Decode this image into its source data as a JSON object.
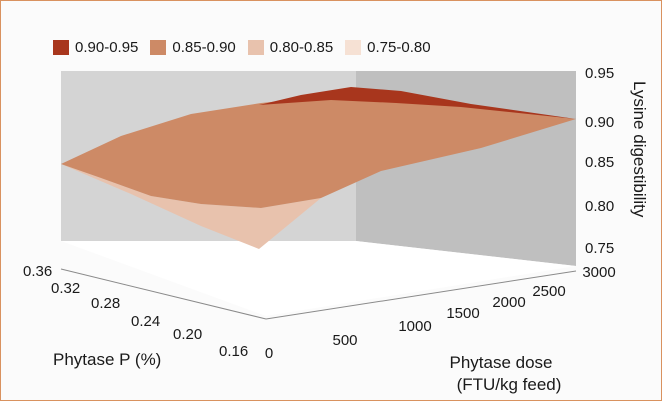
{
  "chart_data": {
    "type": "surface",
    "legend": {
      "placement": "top",
      "entries": [
        {
          "label": "0.90-0.95",
          "color": "#a8361d"
        },
        {
          "label": "0.85-0.90",
          "color": "#cd8a66"
        },
        {
          "label": "0.80-0.85",
          "color": "#e8c2ad"
        },
        {
          "label": "0.75-0.80",
          "color": "#f6e1d4"
        }
      ]
    },
    "x_axis": {
      "label_lines": [
        "Phytase dose",
        "(FTU/kg feed)"
      ],
      "ticks": [
        0,
        500,
        1000,
        1500,
        2000,
        2500,
        3000
      ],
      "range": [
        0,
        3000
      ]
    },
    "y_axis": {
      "label": "Phytase P (%)",
      "ticks": [
        "0.16",
        "0.20",
        "0.24",
        "0.28",
        "0.32",
        "0.36"
      ],
      "range": [
        0.16,
        0.36
      ]
    },
    "z_axis": {
      "label": "Lysine digestibility",
      "ticks": [
        "0.75",
        "0.80",
        "0.85",
        "0.90",
        "0.95"
      ],
      "range": [
        0.75,
        0.95
      ]
    },
    "surface_corners": [
      {
        "phytase_dose": 0,
        "phytase_p": 0.16,
        "lysine_digestibility": 0.81
      },
      {
        "phytase_dose": 3000,
        "phytase_p": 0.16,
        "lysine_digestibility": 0.9
      },
      {
        "phytase_dose": 3000,
        "phytase_p": 0.36,
        "lysine_digestibility": 0.91
      },
      {
        "phytase_dose": 0,
        "phytase_p": 0.36,
        "lysine_digestibility": 0.84
      }
    ],
    "grid": false
  }
}
